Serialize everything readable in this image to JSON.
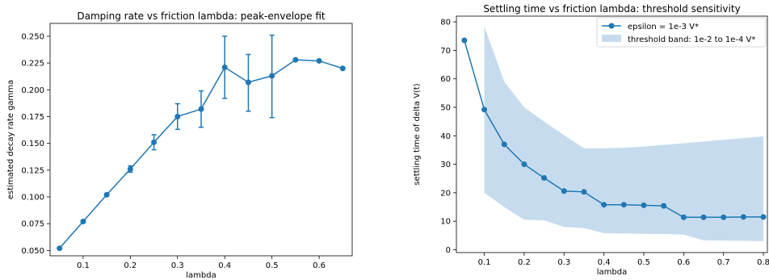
{
  "chart_data": [
    {
      "type": "line",
      "title": "Damping rate vs friction lambda: peak-envelope fit",
      "xlabel": "lambda",
      "ylabel": "estimated decay rate gamma",
      "xlim": [
        0.03,
        0.67
      ],
      "ylim": [
        0.045,
        0.262
      ],
      "xticks": [
        0.1,
        0.2,
        0.3,
        0.4,
        0.5,
        0.6
      ],
      "xtick_labels": [
        "0.1",
        "0.2",
        "0.3",
        "0.4",
        "0.5",
        "0.6"
      ],
      "yticks": [
        0.05,
        0.075,
        0.1,
        0.125,
        0.15,
        0.175,
        0.2,
        0.225,
        0.25
      ],
      "ytick_labels": [
        "0.050",
        "0.075",
        "0.100",
        "0.125",
        "0.150",
        "0.175",
        "0.200",
        "0.225",
        "0.250"
      ],
      "grid": false,
      "color": "#1f77b4",
      "series": [
        {
          "x": [
            0.05,
            0.1,
            0.15,
            0.2,
            0.25,
            0.3,
            0.35,
            0.4,
            0.45,
            0.5,
            0.55,
            0.6,
            0.65
          ],
          "values": [
            0.052,
            0.077,
            0.102,
            0.126,
            0.151,
            0.175,
            0.182,
            0.221,
            0.207,
            0.213,
            0.228,
            0.227,
            0.22
          ],
          "err_low": [
            null,
            null,
            null,
            0.123,
            0.144,
            0.163,
            0.165,
            0.192,
            0.18,
            0.174,
            null,
            null,
            null
          ],
          "err_high": [
            null,
            null,
            null,
            0.129,
            0.158,
            0.187,
            0.199,
            0.25,
            0.233,
            0.251,
            null,
            null,
            null
          ]
        }
      ]
    },
    {
      "type": "line",
      "title": "Settling time vs friction lambda: threshold sensitivity",
      "xlabel": "lambda",
      "ylabel": "settling time of delta V(t)",
      "xlim": [
        0.03,
        0.81
      ],
      "ylim": [
        -1,
        82
      ],
      "xticks": [
        0.1,
        0.2,
        0.3,
        0.4,
        0.5,
        0.6,
        0.7,
        0.8
      ],
      "xtick_labels": [
        "0.1",
        "0.2",
        "0.3",
        "0.4",
        "0.5",
        "0.6",
        "0.7",
        "0.8"
      ],
      "yticks": [
        0,
        10,
        20,
        30,
        40,
        50,
        60,
        70,
        80
      ],
      "ytick_labels": [
        "0",
        "10",
        "20",
        "30",
        "40",
        "50",
        "60",
        "70",
        "80"
      ],
      "grid": false,
      "legend_position": "top-right",
      "color": "#1f77b4",
      "band_color": "#c6dcee",
      "series": [
        {
          "name": "epsilon = 1e-3 V*",
          "x": [
            0.05,
            0.1,
            0.15,
            0.2,
            0.25,
            0.3,
            0.35,
            0.4,
            0.45,
            0.5,
            0.55,
            0.6,
            0.65,
            0.7,
            0.75,
            0.8
          ],
          "values": [
            73.5,
            49.2,
            37.0,
            30.0,
            25.2,
            20.6,
            20.3,
            15.8,
            15.8,
            15.6,
            15.4,
            11.4,
            11.4,
            11.4,
            11.5,
            11.5
          ]
        }
      ],
      "band": {
        "name": "threshold band: 1e-2 to 1e-4 V*",
        "x": [
          0.1,
          0.15,
          0.2,
          0.25,
          0.3,
          0.35,
          0.4,
          0.45,
          0.5,
          0.55,
          0.6,
          0.65,
          0.7,
          0.75,
          0.8
        ],
        "upper": [
          78.5,
          59.0,
          50.0,
          45.0,
          40.2,
          35.6,
          35.6,
          35.8,
          36.2,
          36.8,
          37.4,
          38.0,
          38.6,
          39.2,
          39.8
        ],
        "lower": [
          20.0,
          15.0,
          10.5,
          10.3,
          8.0,
          7.6,
          5.8,
          5.7,
          5.6,
          5.5,
          5.3,
          3.3,
          3.2,
          3.1,
          3.0
        ]
      }
    }
  ]
}
